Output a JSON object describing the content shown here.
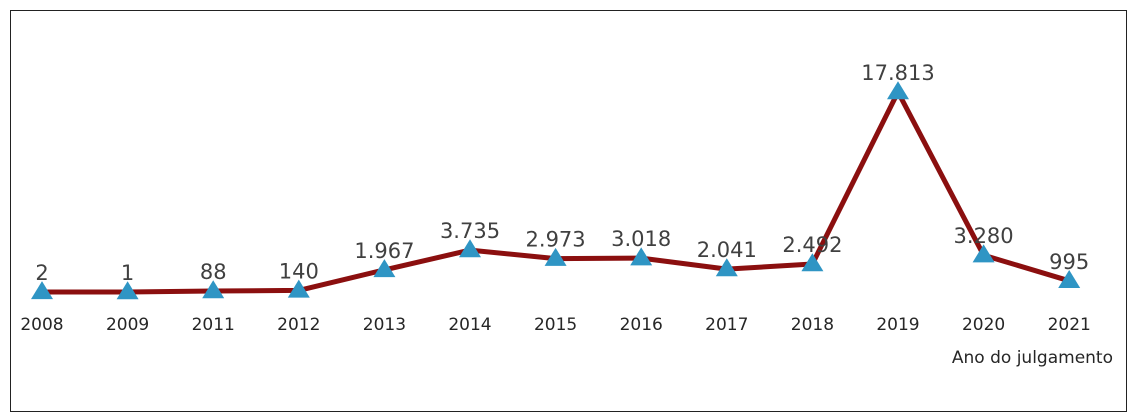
{
  "chart_data": {
    "type": "line",
    "title": "",
    "xlabel": "Ano do julgamento",
    "ylabel": "",
    "categories": [
      "2008",
      "2009",
      "2011",
      "2012",
      "2013",
      "2014",
      "2015",
      "2016",
      "2017",
      "2018",
      "2019",
      "2020",
      "2021"
    ],
    "values": [
      2,
      1,
      88,
      140,
      1967,
      3735,
      2973,
      3018,
      2041,
      2492,
      17813,
      3280,
      995
    ],
    "data_labels": [
      "2",
      "1",
      "88",
      "140",
      "1.967",
      "3.735",
      "2.973",
      "3.018",
      "2.041",
      "2.492",
      "17.813",
      "3.280",
      "995"
    ],
    "ylim": [
      0,
      17813
    ],
    "grid": false,
    "legend": "none",
    "marker": "triangle",
    "colors": {
      "line": "#8b0f0f",
      "marker": "#2f95c4",
      "frame": "#222222"
    }
  }
}
